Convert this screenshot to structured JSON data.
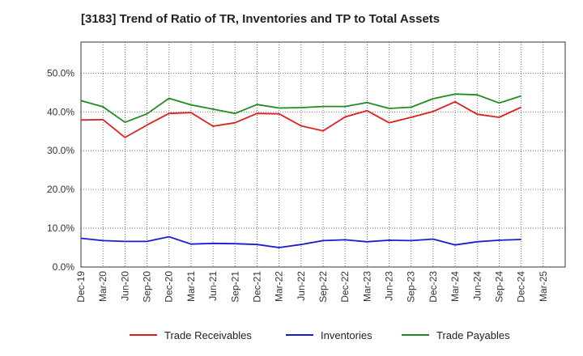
{
  "chart_data": {
    "type": "line",
    "title": "[3183]  Trend of Ratio of TR, Inventories and TP to Total Assets",
    "xlabel": "",
    "ylabel": "",
    "ylim": [
      0,
      58
    ],
    "y_ticks": [
      0,
      10,
      20,
      30,
      40,
      50
    ],
    "y_tick_labels": [
      "0.0%",
      "10.0%",
      "20.0%",
      "30.0%",
      "40.0%",
      "50.0%"
    ],
    "x_tick_labels": [
      "Dec-19",
      "Mar-20",
      "Jun-20",
      "Sep-20",
      "Dec-20",
      "Mar-21",
      "Jun-21",
      "Sep-21",
      "Dec-21",
      "Mar-22",
      "Jun-22",
      "Sep-22",
      "Dec-22",
      "Mar-23",
      "Jun-23",
      "Sep-23",
      "Dec-23",
      "Mar-24",
      "Jun-24",
      "Sep-24",
      "Dec-24",
      "Mar-25"
    ],
    "x": [
      "Dec-19",
      "Mar-20",
      "Jun-20",
      "Sep-20",
      "Dec-20",
      "Mar-21",
      "Jun-21",
      "Sep-21",
      "Dec-21",
      "Mar-22",
      "Jun-22",
      "Sep-22",
      "Dec-22",
      "Mar-23",
      "Jun-23",
      "Sep-23",
      "Dec-23",
      "Mar-24",
      "Jun-24",
      "Sep-24",
      "Dec-24"
    ],
    "grid": "on",
    "legend_position": "bottom",
    "series": [
      {
        "name": "Trade Receivables",
        "color": "#e01e1e",
        "values": [
          37.9,
          38.0,
          33.4,
          36.6,
          39.6,
          39.8,
          36.3,
          37.2,
          39.6,
          39.5,
          36.4,
          35.1,
          38.7,
          40.3,
          37.2,
          38.6,
          40.1,
          42.6,
          39.4,
          38.6,
          41.2
        ]
      },
      {
        "name": "Inventories",
        "color": "#1a1ad6",
        "values": [
          7.4,
          6.8,
          6.6,
          6.6,
          7.8,
          5.9,
          6.1,
          6.0,
          5.8,
          5.0,
          5.8,
          6.8,
          7.0,
          6.5,
          6.9,
          6.8,
          7.2,
          5.7,
          6.5,
          6.9,
          7.1
        ]
      },
      {
        "name": "Trade Payables",
        "color": "#1e8c1e",
        "values": [
          42.9,
          41.3,
          37.3,
          39.5,
          43.5,
          41.8,
          40.7,
          39.6,
          41.9,
          41.0,
          41.1,
          41.4,
          41.4,
          42.4,
          40.9,
          41.2,
          43.4,
          44.6,
          44.4,
          42.3,
          44.1
        ]
      }
    ]
  }
}
